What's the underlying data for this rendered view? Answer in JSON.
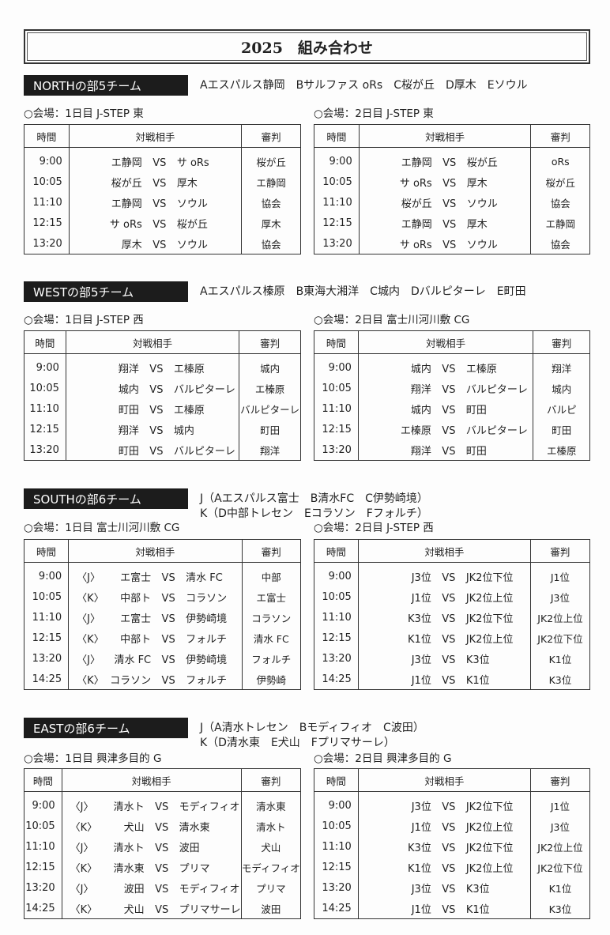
{
  "title": "2025　組み合わせ",
  "headers": {
    "time": "時間",
    "match": "対戦相手",
    "ref": "審判",
    "vs": "VS"
  },
  "sections": [
    {
      "label": "NORTHの部5チーム",
      "teams": "Aエスパルス静岡　Bサルファス oRs　C桜が丘　D厚木　Eソウル",
      "day1": {
        "venue": "○会場：1日目 J-STEP 東",
        "rows": [
          [
            "9:00",
            "",
            "エ静岡",
            "サ oRs",
            "桜が丘"
          ],
          [
            "10:05",
            "",
            "桜が丘",
            "厚木",
            "エ静岡"
          ],
          [
            "11:10",
            "",
            "エ静岡",
            "ソウル",
            "協会"
          ],
          [
            "12:15",
            "",
            "サ oRs",
            "桜が丘",
            "厚木"
          ],
          [
            "13:20",
            "",
            "厚木",
            "ソウル",
            "協会"
          ]
        ]
      },
      "day2": {
        "venue": "○会場：2日目 J-STEP 東",
        "rows": [
          [
            "9:00",
            "",
            "エ静岡",
            "桜が丘",
            "oRs"
          ],
          [
            "10:05",
            "",
            "サ oRs",
            "厚木",
            "桜が丘"
          ],
          [
            "11:10",
            "",
            "桜が丘",
            "ソウル",
            "協会"
          ],
          [
            "12:15",
            "",
            "エ静岡",
            "厚木",
            "エ静岡"
          ],
          [
            "13:20",
            "",
            "サ oRs",
            "ソウル",
            "協会"
          ]
        ]
      }
    },
    {
      "label": "WESTの部5チーム",
      "teams": "Aエスパルス榛原　B東海大湘洋　C城内　Dバルピターレ　E町田",
      "day1": {
        "venue": "○会場：1日目 J-STEP 西",
        "rows": [
          [
            "9:00",
            "",
            "翔洋",
            "エ榛原",
            "城内"
          ],
          [
            "10:05",
            "",
            "城内",
            "バルピターレ",
            "エ榛原"
          ],
          [
            "11:10",
            "",
            "町田",
            "エ榛原",
            "バルピターレ"
          ],
          [
            "12:15",
            "",
            "翔洋",
            "城内",
            "町田"
          ],
          [
            "13:20",
            "",
            "町田",
            "バルピターレ",
            "翔洋"
          ]
        ]
      },
      "day2": {
        "venue": "○会場：2日目 富士川河川敷 CG",
        "rows": [
          [
            "9:00",
            "",
            "城内",
            "エ榛原",
            "翔洋"
          ],
          [
            "10:05",
            "",
            "翔洋",
            "バルピターレ",
            "城内"
          ],
          [
            "11:10",
            "",
            "城内",
            "町田",
            "バルピ"
          ],
          [
            "12:15",
            "",
            "エ榛原",
            "バルピターレ",
            "町田"
          ],
          [
            "13:20",
            "",
            "翔洋",
            "町田",
            "エ榛原"
          ]
        ]
      }
    },
    {
      "label": "SOUTHの部6チーム",
      "teams": "J（Aエスパルス富士　B清水FC　C伊勢崎境）\nK（D中部トレセン　Eコラソン　Fフォルチ）",
      "day1": {
        "venue": "○会場：1日目 富士川河川敷 CG",
        "rows": [
          [
            "9:00",
            "〈J〉",
            "エ富士",
            "清水 FC",
            "中部"
          ],
          [
            "10:05",
            "〈K〉",
            "中部ト",
            "コラソン",
            "エ富士"
          ],
          [
            "11:10",
            "〈J〉",
            "エ富士",
            "伊勢崎境",
            "コラソン"
          ],
          [
            "12:15",
            "〈K〉",
            "中部ト",
            "フォルチ",
            "清水 FC"
          ],
          [
            "13:20",
            "〈J〉",
            "清水 FC",
            "伊勢崎境",
            "フォルチ"
          ],
          [
            "14:25",
            "〈K〉",
            "コラソン",
            "フォルチ",
            "伊勢崎"
          ]
        ]
      },
      "day2": {
        "venue": "○会場：2日目 J-STEP 西",
        "rows": [
          [
            "9:00",
            "",
            "J3位",
            "JK2位下位",
            "J1位"
          ],
          [
            "10:05",
            "",
            "J1位",
            "JK2位上位",
            "J3位"
          ],
          [
            "11:10",
            "",
            "K3位",
            "JK2位下位",
            "JK2位上位"
          ],
          [
            "12:15",
            "",
            "K1位",
            "JK2位上位",
            "JK2位下位"
          ],
          [
            "13:20",
            "",
            "J3位",
            "K3位",
            "K1位"
          ],
          [
            "14:25",
            "",
            "J1位",
            "K1位",
            "K3位"
          ]
        ]
      }
    },
    {
      "label": "EASTの部6チーム",
      "teams": "J（A清水トレセン　Bモディフィオ　C波田）\nK（D清水東　E犬山　Fプリマサーレ）",
      "day1": {
        "venue": "○会場：1日目 興津多目的 G",
        "rows": [
          [
            "9:00",
            "〈J〉",
            "清水ト",
            "モディフィオ",
            "清水東"
          ],
          [
            "10:05",
            "〈K〉",
            "犬山",
            "清水東",
            "清水ト"
          ],
          [
            "11:10",
            "〈J〉",
            "清水ト",
            "波田",
            "犬山"
          ],
          [
            "12:15",
            "〈K〉",
            "清水東",
            "プリマ",
            "モディフィオ"
          ],
          [
            "13:20",
            "〈J〉",
            "波田",
            "モディフィオ",
            "プリマ"
          ],
          [
            "14:25",
            "〈K〉",
            "犬山",
            "プリマサーレ",
            "波田"
          ]
        ]
      },
      "day2": {
        "venue": "○会場：2日目 興津多目的 G",
        "rows": [
          [
            "9:00",
            "",
            "J3位",
            "JK2位下位",
            "J1位"
          ],
          [
            "10:05",
            "",
            "J1位",
            "JK2位上位",
            "J3位"
          ],
          [
            "11:10",
            "",
            "K3位",
            "JK2位下位",
            "JK2位上位"
          ],
          [
            "12:15",
            "",
            "K1位",
            "JK2位上位",
            "JK2位下位"
          ],
          [
            "13:20",
            "",
            "J3位",
            "K3位",
            "K1位"
          ],
          [
            "14:25",
            "",
            "J1位",
            "K1位",
            "K3位"
          ]
        ]
      }
    }
  ]
}
